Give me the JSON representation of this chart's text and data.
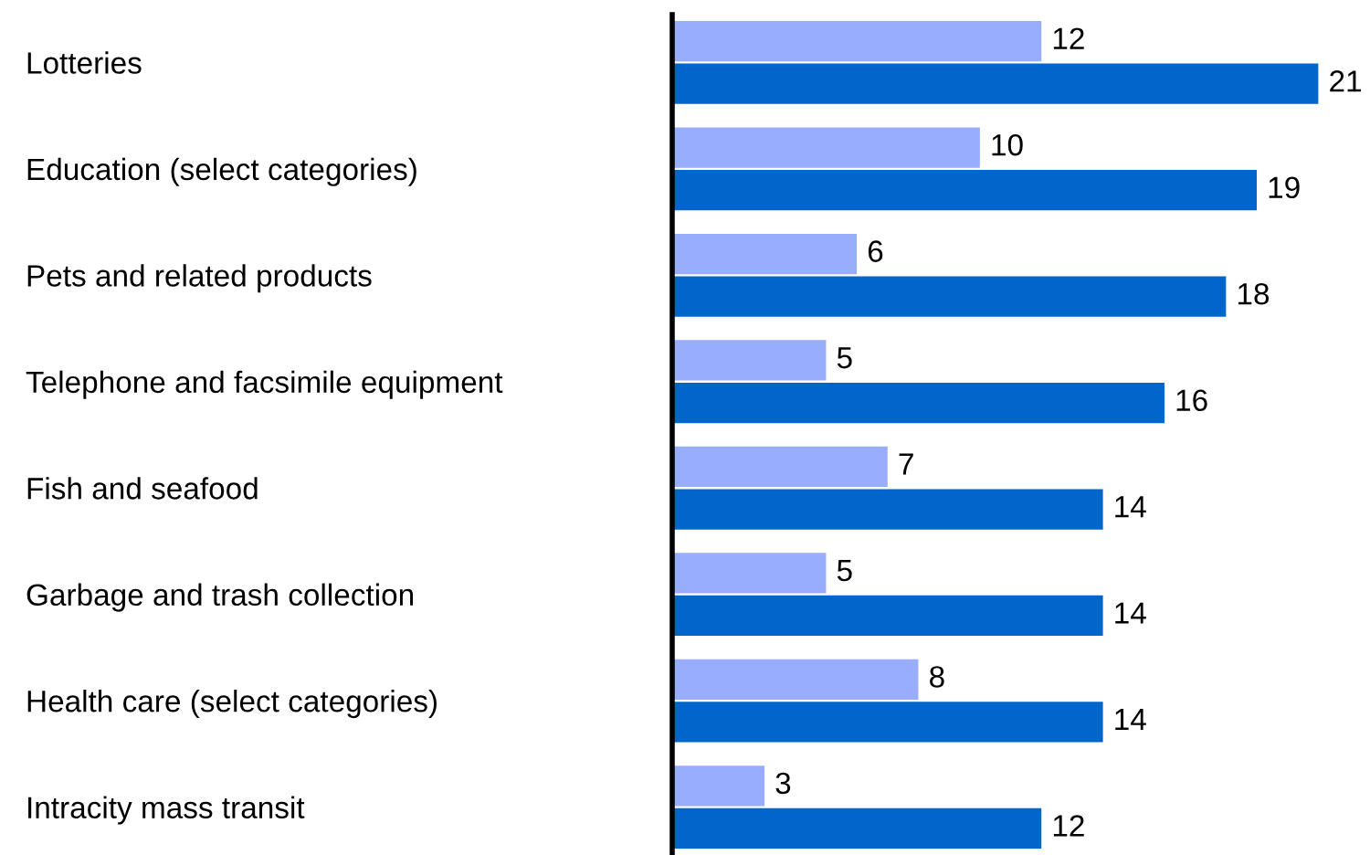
{
  "chart_data": {
    "type": "bar",
    "orientation": "horizontal",
    "categories": [
      "Lotteries",
      "Education (select categories)",
      "Pets and related products",
      "Telephone and facsimile equipment",
      "Fish and seafood",
      "Garbage and trash collection",
      "Health care (select categories)",
      "Intracity mass transit"
    ],
    "series": [
      {
        "color": "#99adff",
        "values": [
          12,
          10,
          6,
          5,
          7,
          5,
          8,
          3
        ]
      },
      {
        "color": "#0066cc",
        "values": [
          21,
          19,
          18,
          16,
          14,
          14,
          14,
          12
        ]
      }
    ],
    "data_labels": true,
    "grid": false,
    "legend": false,
    "tick_labels": "y"
  }
}
